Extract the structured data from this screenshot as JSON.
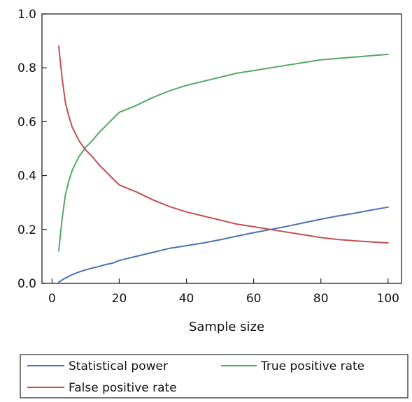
{
  "chart_data": {
    "type": "line",
    "title": "",
    "xlabel": "Sample size",
    "ylabel": "",
    "xlim": [
      -3,
      104
    ],
    "ylim": [
      0,
      1.0
    ],
    "x_ticks": [
      0,
      20,
      40,
      60,
      80,
      100
    ],
    "y_ticks": [
      0.0,
      0.2,
      0.4,
      0.6,
      0.8,
      1.0
    ],
    "y_tick_labels": [
      "0.0",
      "0.2",
      "0.4",
      "0.6",
      "0.8",
      "1.0"
    ],
    "grid": false,
    "legend_position": "bottom",
    "series": [
      {
        "name": "Statistical power",
        "color": "#4c72b0",
        "x": [
          2,
          4,
          6,
          8,
          10,
          12,
          14,
          16,
          18,
          20,
          25,
          30,
          35,
          40,
          45,
          50,
          55,
          60,
          65,
          70,
          75,
          80,
          85,
          90,
          95,
          100
        ],
        "y": [
          0.005,
          0.02,
          0.032,
          0.042,
          0.05,
          0.057,
          0.063,
          0.07,
          0.075,
          0.085,
          0.1,
          0.115,
          0.13,
          0.14,
          0.15,
          0.162,
          0.175,
          0.188,
          0.2,
          0.212,
          0.225,
          0.238,
          0.25,
          0.26,
          0.272,
          0.283
        ]
      },
      {
        "name": "True positive rate",
        "color": "#55a868",
        "x": [
          2,
          3,
          4,
          5,
          6,
          8,
          10,
          12,
          14,
          16,
          18,
          20,
          25,
          30,
          35,
          40,
          45,
          50,
          55,
          60,
          65,
          70,
          75,
          80,
          85,
          90,
          95,
          100
        ],
        "y": [
          0.12,
          0.24,
          0.33,
          0.38,
          0.42,
          0.47,
          0.505,
          0.53,
          0.56,
          0.585,
          0.61,
          0.635,
          0.66,
          0.69,
          0.715,
          0.735,
          0.75,
          0.765,
          0.78,
          0.79,
          0.8,
          0.81,
          0.82,
          0.83,
          0.835,
          0.84,
          0.845,
          0.85
        ]
      },
      {
        "name": "False positive rate",
        "color": "#c44e52",
        "x": [
          2,
          3,
          4,
          5,
          6,
          8,
          10,
          12,
          14,
          16,
          18,
          20,
          25,
          30,
          35,
          40,
          45,
          50,
          55,
          60,
          65,
          70,
          75,
          80,
          85,
          90,
          95,
          100
        ],
        "y": [
          0.88,
          0.76,
          0.67,
          0.62,
          0.58,
          0.53,
          0.495,
          0.47,
          0.44,
          0.415,
          0.39,
          0.365,
          0.34,
          0.31,
          0.285,
          0.265,
          0.25,
          0.235,
          0.22,
          0.21,
          0.2,
          0.19,
          0.18,
          0.17,
          0.163,
          0.158,
          0.154,
          0.15
        ]
      }
    ]
  }
}
